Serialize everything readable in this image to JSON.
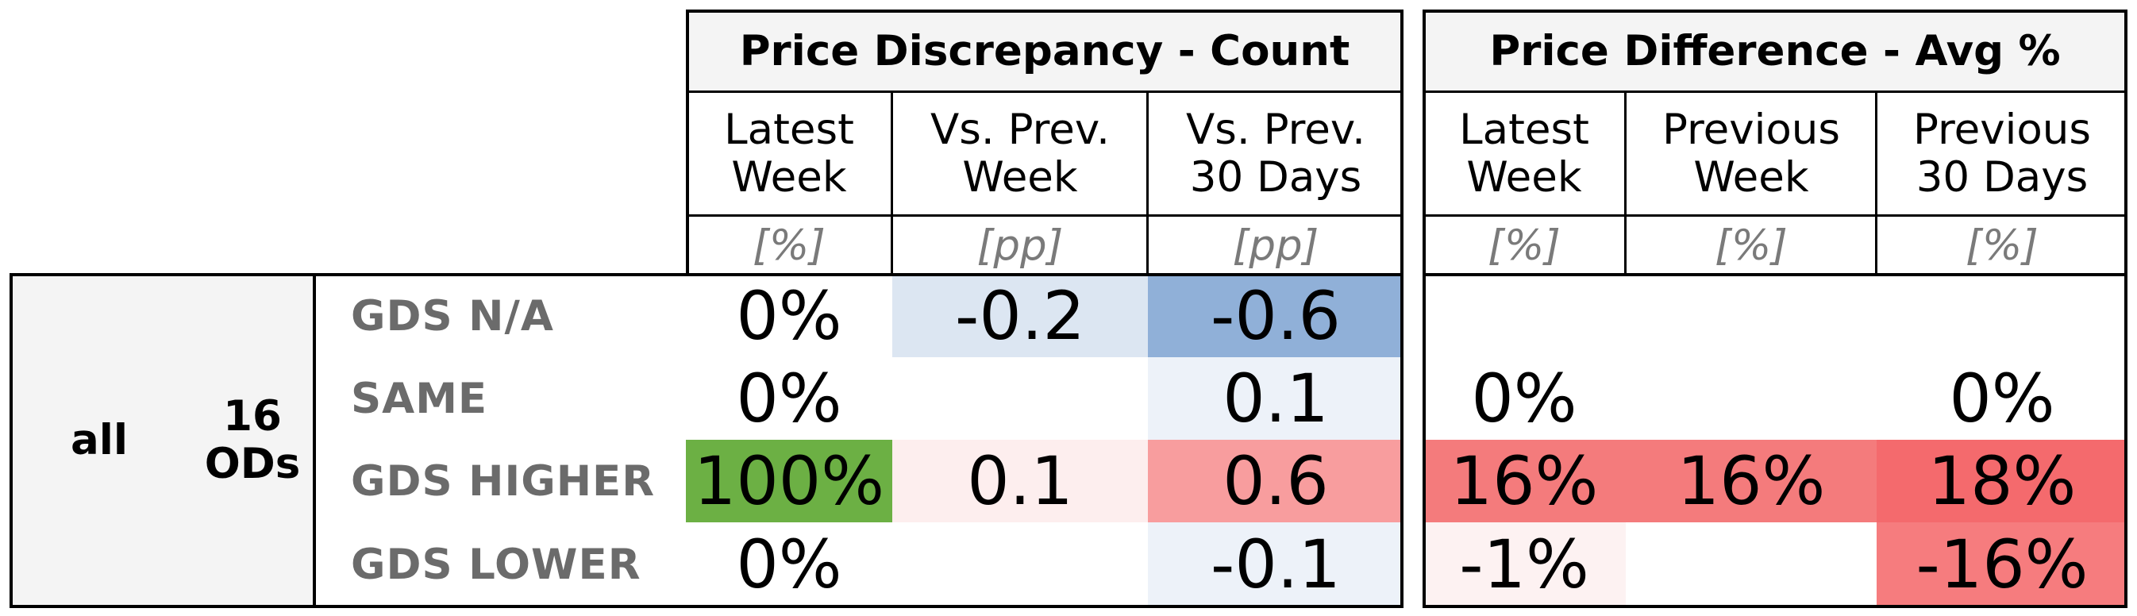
{
  "chart_data": {
    "type": "table",
    "groups": [
      {
        "title": "Price Discrepancy - Count",
        "columns": [
          {
            "label": "Latest\nWeek",
            "unit": "[%]"
          },
          {
            "label": "Vs. Prev.\nWeek",
            "unit": "[pp]"
          },
          {
            "label": "Vs. Prev.\n30 Days",
            "unit": "[pp]"
          }
        ]
      },
      {
        "title": "Price Difference - Avg %",
        "columns": [
          {
            "label": "Latest\nWeek",
            "unit": "[%]"
          },
          {
            "label": "Previous\nWeek",
            "unit": "[%]"
          },
          {
            "label": "Previous\n30 Days",
            "unit": "[%]"
          }
        ]
      }
    ],
    "segment": "all",
    "od_count": "16\nODs",
    "rows": [
      {
        "label": "GDS N/A",
        "cells": [
          "0%",
          "-0.2",
          "-0.6",
          "",
          "",
          ""
        ]
      },
      {
        "label": "SAME",
        "cells": [
          "0%",
          "",
          "0.1",
          "0%",
          "",
          "0%"
        ]
      },
      {
        "label": "GDS HIGHER",
        "cells": [
          "100%",
          "0.1",
          "0.6",
          "16%",
          "16%",
          "18%"
        ]
      },
      {
        "label": "GDS LOWER",
        "cells": [
          "0%",
          "",
          "-0.1",
          "-1%",
          "",
          "-16%"
        ]
      }
    ],
    "cell_colors": [
      [
        "#ffffff",
        "#dce6f2",
        "#90b0d8",
        "#ffffff",
        "#ffffff",
        "#ffffff"
      ],
      [
        "#ffffff",
        "#ffffff",
        "#edf2f9",
        "#ffffff",
        "#ffffff",
        "#ffffff"
      ],
      [
        "#6cb044",
        "#fdeeee",
        "#f89d9e",
        "#f47b7c",
        "#f47b7c",
        "#f46a6d"
      ],
      [
        "#ffffff",
        "#ffffff",
        "#edf2f9",
        "#fdf2f2",
        "#ffffff",
        "#f67c7e"
      ]
    ]
  }
}
